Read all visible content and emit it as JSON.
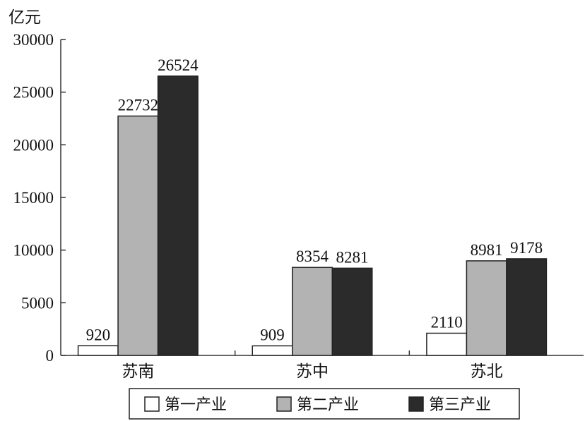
{
  "chart_data": {
    "type": "bar",
    "ylabel": "亿元",
    "ylim": [
      0,
      30000
    ],
    "yticks": [
      0,
      5000,
      10000,
      15000,
      20000,
      25000,
      30000
    ],
    "categories": [
      "苏南",
      "苏中",
      "苏北"
    ],
    "series": [
      {
        "name": "第一产业",
        "color": "#ffffff",
        "values": [
          920,
          909,
          2110
        ]
      },
      {
        "name": "第二产业",
        "color": "#b3b3b3",
        "values": [
          22732,
          8354,
          8981
        ]
      },
      {
        "name": "第三产业",
        "color": "#2b2b2b",
        "values": [
          26524,
          8281,
          9178
        ]
      }
    ],
    "legend_position": "bottom"
  }
}
